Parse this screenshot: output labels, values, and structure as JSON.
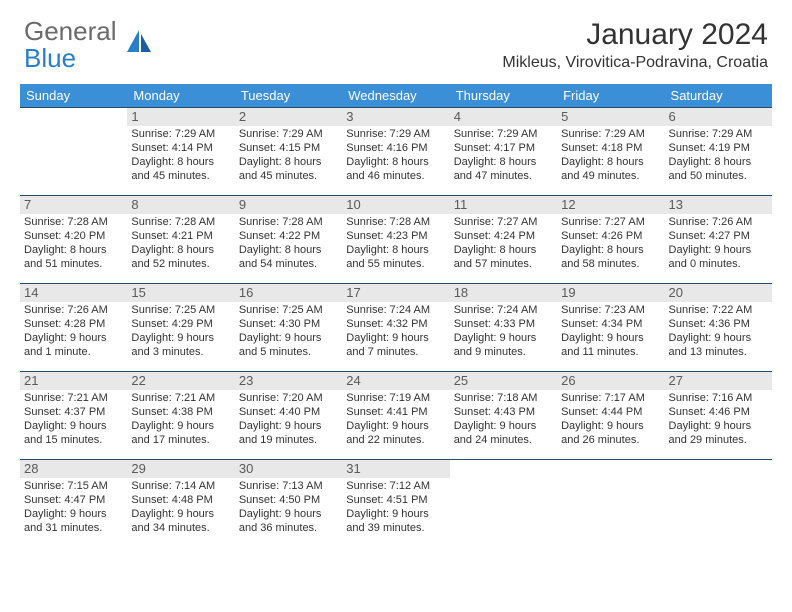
{
  "logo": {
    "part1": "General",
    "part2": "Blue"
  },
  "title": "January 2024",
  "location": "Mikleus, Virovitica-Podravina, Croatia",
  "colors": {
    "header_bg": "#3b8fd6",
    "header_text": "#ffffff",
    "daynum_bg": "#e8e8e8",
    "border": "#2a4a6a",
    "body_text": "#333333",
    "logo_gray": "#6b6b6b",
    "logo_blue": "#2a7fc9"
  },
  "weekdays": [
    "Sunday",
    "Monday",
    "Tuesday",
    "Wednesday",
    "Thursday",
    "Friday",
    "Saturday"
  ],
  "weeks": [
    [
      {
        "n": "",
        "lines": []
      },
      {
        "n": "1",
        "lines": [
          "Sunrise: 7:29 AM",
          "Sunset: 4:14 PM",
          "Daylight: 8 hours",
          "and 45 minutes."
        ]
      },
      {
        "n": "2",
        "lines": [
          "Sunrise: 7:29 AM",
          "Sunset: 4:15 PM",
          "Daylight: 8 hours",
          "and 45 minutes."
        ]
      },
      {
        "n": "3",
        "lines": [
          "Sunrise: 7:29 AM",
          "Sunset: 4:16 PM",
          "Daylight: 8 hours",
          "and 46 minutes."
        ]
      },
      {
        "n": "4",
        "lines": [
          "Sunrise: 7:29 AM",
          "Sunset: 4:17 PM",
          "Daylight: 8 hours",
          "and 47 minutes."
        ]
      },
      {
        "n": "5",
        "lines": [
          "Sunrise: 7:29 AM",
          "Sunset: 4:18 PM",
          "Daylight: 8 hours",
          "and 49 minutes."
        ]
      },
      {
        "n": "6",
        "lines": [
          "Sunrise: 7:29 AM",
          "Sunset: 4:19 PM",
          "Daylight: 8 hours",
          "and 50 minutes."
        ]
      }
    ],
    [
      {
        "n": "7",
        "lines": [
          "Sunrise: 7:28 AM",
          "Sunset: 4:20 PM",
          "Daylight: 8 hours",
          "and 51 minutes."
        ]
      },
      {
        "n": "8",
        "lines": [
          "Sunrise: 7:28 AM",
          "Sunset: 4:21 PM",
          "Daylight: 8 hours",
          "and 52 minutes."
        ]
      },
      {
        "n": "9",
        "lines": [
          "Sunrise: 7:28 AM",
          "Sunset: 4:22 PM",
          "Daylight: 8 hours",
          "and 54 minutes."
        ]
      },
      {
        "n": "10",
        "lines": [
          "Sunrise: 7:28 AM",
          "Sunset: 4:23 PM",
          "Daylight: 8 hours",
          "and 55 minutes."
        ]
      },
      {
        "n": "11",
        "lines": [
          "Sunrise: 7:27 AM",
          "Sunset: 4:24 PM",
          "Daylight: 8 hours",
          "and 57 minutes."
        ]
      },
      {
        "n": "12",
        "lines": [
          "Sunrise: 7:27 AM",
          "Sunset: 4:26 PM",
          "Daylight: 8 hours",
          "and 58 minutes."
        ]
      },
      {
        "n": "13",
        "lines": [
          "Sunrise: 7:26 AM",
          "Sunset: 4:27 PM",
          "Daylight: 9 hours",
          "and 0 minutes."
        ]
      }
    ],
    [
      {
        "n": "14",
        "lines": [
          "Sunrise: 7:26 AM",
          "Sunset: 4:28 PM",
          "Daylight: 9 hours",
          "and 1 minute."
        ]
      },
      {
        "n": "15",
        "lines": [
          "Sunrise: 7:25 AM",
          "Sunset: 4:29 PM",
          "Daylight: 9 hours",
          "and 3 minutes."
        ]
      },
      {
        "n": "16",
        "lines": [
          "Sunrise: 7:25 AM",
          "Sunset: 4:30 PM",
          "Daylight: 9 hours",
          "and 5 minutes."
        ]
      },
      {
        "n": "17",
        "lines": [
          "Sunrise: 7:24 AM",
          "Sunset: 4:32 PM",
          "Daylight: 9 hours",
          "and 7 minutes."
        ]
      },
      {
        "n": "18",
        "lines": [
          "Sunrise: 7:24 AM",
          "Sunset: 4:33 PM",
          "Daylight: 9 hours",
          "and 9 minutes."
        ]
      },
      {
        "n": "19",
        "lines": [
          "Sunrise: 7:23 AM",
          "Sunset: 4:34 PM",
          "Daylight: 9 hours",
          "and 11 minutes."
        ]
      },
      {
        "n": "20",
        "lines": [
          "Sunrise: 7:22 AM",
          "Sunset: 4:36 PM",
          "Daylight: 9 hours",
          "and 13 minutes."
        ]
      }
    ],
    [
      {
        "n": "21",
        "lines": [
          "Sunrise: 7:21 AM",
          "Sunset: 4:37 PM",
          "Daylight: 9 hours",
          "and 15 minutes."
        ]
      },
      {
        "n": "22",
        "lines": [
          "Sunrise: 7:21 AM",
          "Sunset: 4:38 PM",
          "Daylight: 9 hours",
          "and 17 minutes."
        ]
      },
      {
        "n": "23",
        "lines": [
          "Sunrise: 7:20 AM",
          "Sunset: 4:40 PM",
          "Daylight: 9 hours",
          "and 19 minutes."
        ]
      },
      {
        "n": "24",
        "lines": [
          "Sunrise: 7:19 AM",
          "Sunset: 4:41 PM",
          "Daylight: 9 hours",
          "and 22 minutes."
        ]
      },
      {
        "n": "25",
        "lines": [
          "Sunrise: 7:18 AM",
          "Sunset: 4:43 PM",
          "Daylight: 9 hours",
          "and 24 minutes."
        ]
      },
      {
        "n": "26",
        "lines": [
          "Sunrise: 7:17 AM",
          "Sunset: 4:44 PM",
          "Daylight: 9 hours",
          "and 26 minutes."
        ]
      },
      {
        "n": "27",
        "lines": [
          "Sunrise: 7:16 AM",
          "Sunset: 4:46 PM",
          "Daylight: 9 hours",
          "and 29 minutes."
        ]
      }
    ],
    [
      {
        "n": "28",
        "lines": [
          "Sunrise: 7:15 AM",
          "Sunset: 4:47 PM",
          "Daylight: 9 hours",
          "and 31 minutes."
        ]
      },
      {
        "n": "29",
        "lines": [
          "Sunrise: 7:14 AM",
          "Sunset: 4:48 PM",
          "Daylight: 9 hours",
          "and 34 minutes."
        ]
      },
      {
        "n": "30",
        "lines": [
          "Sunrise: 7:13 AM",
          "Sunset: 4:50 PM",
          "Daylight: 9 hours",
          "and 36 minutes."
        ]
      },
      {
        "n": "31",
        "lines": [
          "Sunrise: 7:12 AM",
          "Sunset: 4:51 PM",
          "Daylight: 9 hours",
          "and 39 minutes."
        ]
      },
      {
        "n": "",
        "lines": []
      },
      {
        "n": "",
        "lines": []
      },
      {
        "n": "",
        "lines": []
      }
    ]
  ]
}
